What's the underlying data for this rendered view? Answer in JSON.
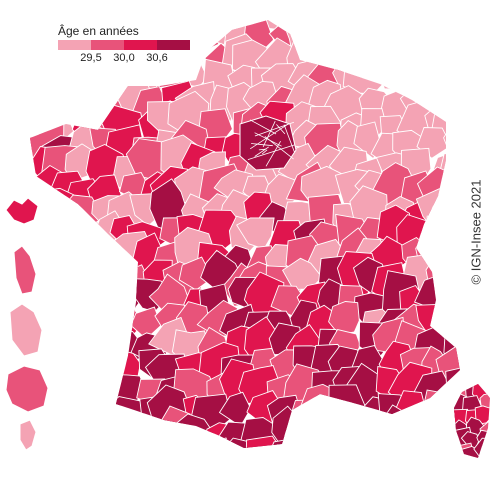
{
  "legend": {
    "title": "Âge en années",
    "thresholds": [
      "29,5",
      "30,0",
      "30,6"
    ],
    "class_colors": [
      "#f4a3b4",
      "#e8537a",
      "#e0154e",
      "#a50f44"
    ]
  },
  "credit": "© IGN-Insee 2021",
  "map": {
    "background_color": "#ffffff",
    "border_color": "#ffffff"
  }
}
